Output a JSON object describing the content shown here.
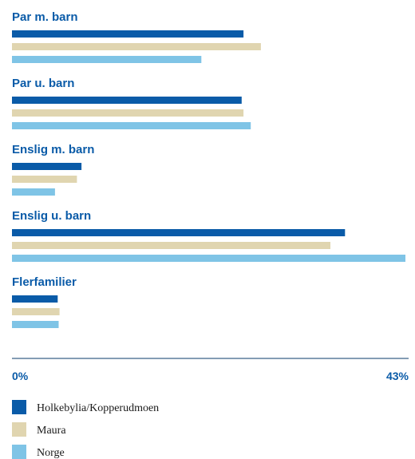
{
  "chart_data": {
    "type": "bar",
    "orientation": "horizontal",
    "categories": [
      "Par m. barn",
      "Par u. barn",
      "Enslig m. barn",
      "Enslig u. barn",
      "Flerfamilier"
    ],
    "series": [
      {
        "name": "Holkebylia/Kopperudmoen",
        "values": [
          25.3,
          25.1,
          7.6,
          36.4,
          5.0
        ]
      },
      {
        "name": "Maura",
        "values": [
          27.2,
          25.3,
          7.1,
          34.8,
          5.2
        ]
      },
      {
        "name": "Norge",
        "values": [
          20.7,
          26.1,
          4.7,
          43.0,
          5.1
        ]
      }
    ],
    "xlim": [
      0,
      43
    ],
    "tick_labels": [
      "0%",
      "43%"
    ],
    "legend_position": "bottom",
    "grid": false
  },
  "colors": {
    "Holkebylia/Kopperudmoen": "#0a5ba8",
    "Maura": "#e0d5b0",
    "Norge": "#7fc4e6",
    "text": "#0a5ba8",
    "axis": "#0a3a6a"
  }
}
